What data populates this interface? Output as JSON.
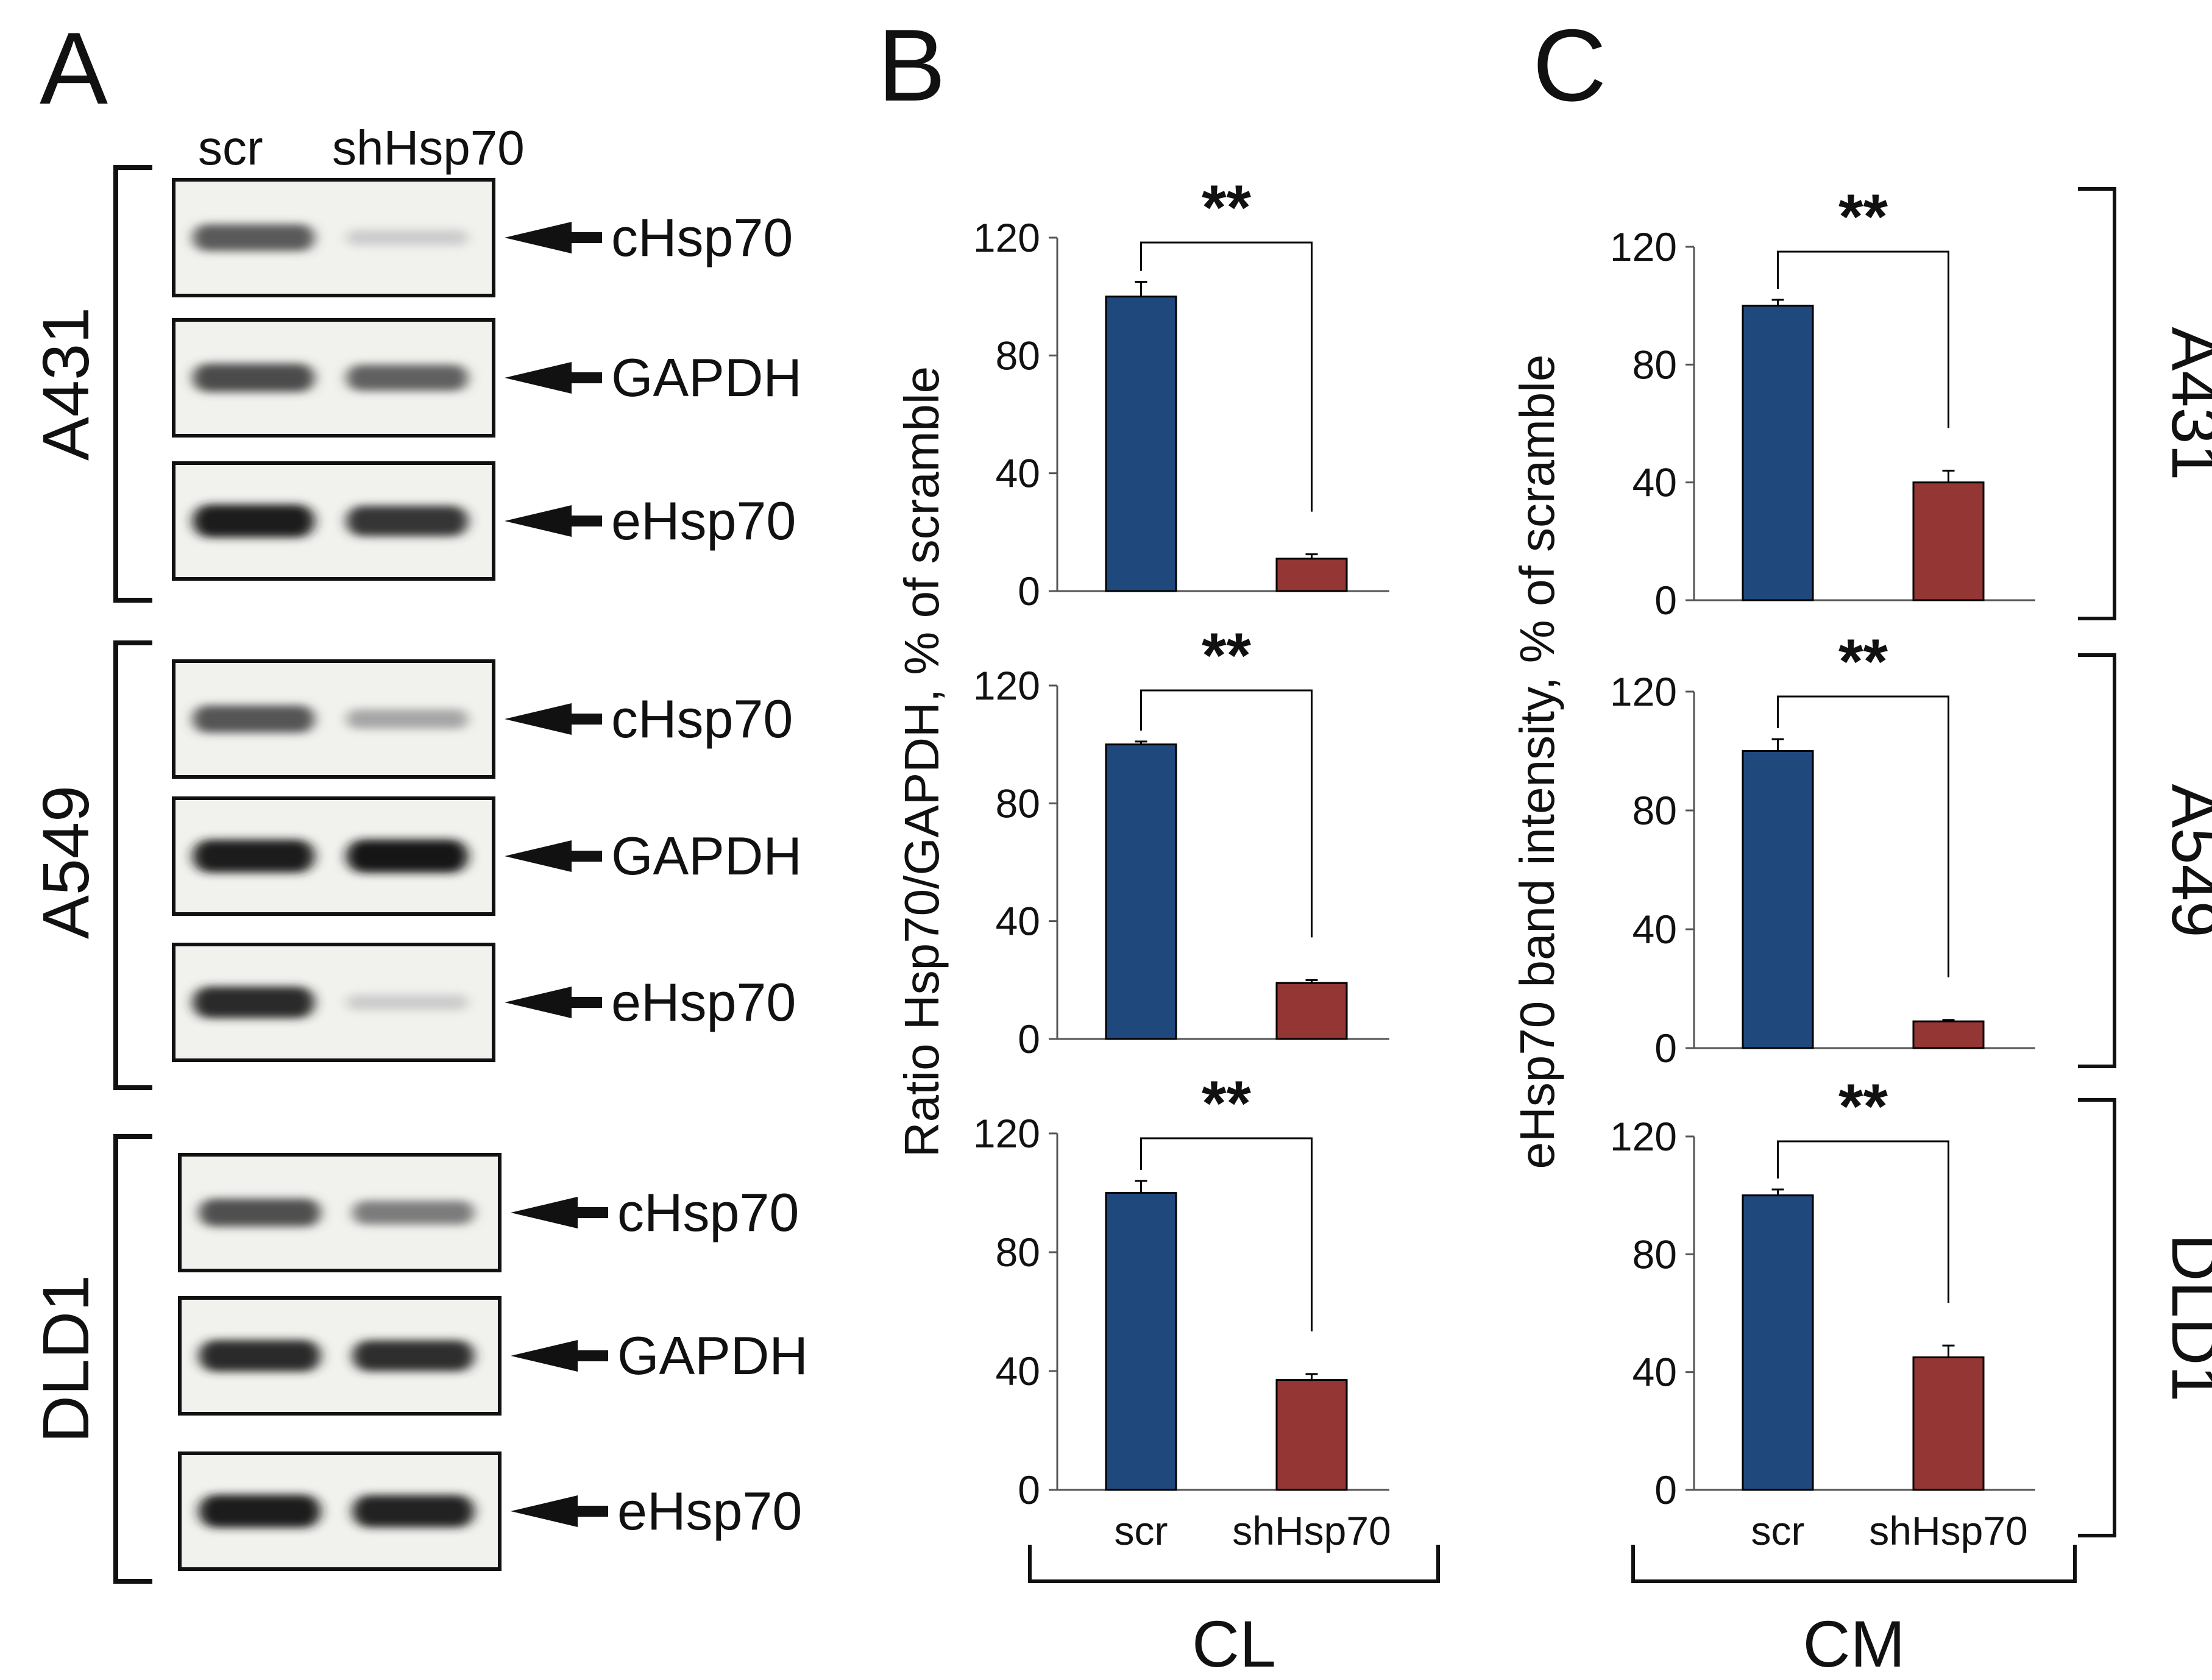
{
  "figure": {
    "panel_labels": [
      "A",
      "B",
      "C"
    ],
    "western_blot": {
      "lanes": [
        "scr",
        "shHsp70"
      ],
      "cell_lines": [
        {
          "name": "A431",
          "blots": [
            {
              "label": "cHsp70",
              "intensity": [
                0.65,
                0.12
              ]
            },
            {
              "label": "GAPDH",
              "intensity": [
                0.72,
                0.62
              ]
            },
            {
              "label": "eHsp70",
              "intensity": [
                0.95,
                0.82
              ]
            }
          ]
        },
        {
          "name": "A549",
          "blots": [
            {
              "label": "cHsp70",
              "intensity": [
                0.68,
                0.3
              ]
            },
            {
              "label": "GAPDH",
              "intensity": [
                0.95,
                0.96
              ]
            },
            {
              "label": "eHsp70",
              "intensity": [
                0.88,
                0.12
              ]
            }
          ]
        },
        {
          "name": "DLD1",
          "blots": [
            {
              "label": "cHsp70",
              "intensity": [
                0.7,
                0.5
              ]
            },
            {
              "label": "GAPDH",
              "intensity": [
                0.88,
                0.85
              ]
            },
            {
              "label": "eHsp70",
              "intensity": [
                0.95,
                0.92
              ]
            }
          ]
        }
      ]
    },
    "group_labels": {
      "B": "CL",
      "C": "CM"
    }
  },
  "colors": {
    "scr": "#1f497d",
    "shHsp70": "#943634",
    "ink": "#111111"
  },
  "chart_data": [
    {
      "type": "bar",
      "panel": "B",
      "cell_line": "A431",
      "categories": [
        "scr",
        "shHsp70"
      ],
      "values": [
        100,
        11
      ],
      "errors": [
        5,
        1.5
      ],
      "ylim": [
        0,
        120
      ],
      "yticks": [
        0,
        40,
        80,
        120
      ],
      "significance": "**",
      "ylabel": "Ratio Hsp70/GAPDH,  % of scramble",
      "xlabel": "CL"
    },
    {
      "type": "bar",
      "panel": "B",
      "cell_line": "A549",
      "categories": [
        "scr",
        "shHsp70"
      ],
      "values": [
        100,
        19
      ],
      "errors": [
        1,
        1
      ],
      "ylim": [
        0,
        120
      ],
      "yticks": [
        0,
        40,
        80,
        120
      ],
      "significance": "**",
      "ylabel": "Ratio Hsp70/GAPDH,  % of scramble",
      "xlabel": "CL"
    },
    {
      "type": "bar",
      "panel": "B",
      "cell_line": "DLD1",
      "categories": [
        "scr",
        "shHsp70"
      ],
      "values": [
        100,
        37
      ],
      "errors": [
        4,
        2
      ],
      "ylim": [
        0,
        120
      ],
      "yticks": [
        0,
        40,
        80,
        120
      ],
      "significance": "**",
      "ylabel": "Ratio Hsp70/GAPDH,  % of scramble",
      "xlabel": "CL"
    },
    {
      "type": "bar",
      "panel": "C",
      "cell_line": "A431",
      "categories": [
        "scr",
        "shHsp70"
      ],
      "values": [
        100,
        40
      ],
      "errors": [
        2,
        4
      ],
      "ylim": [
        0,
        120
      ],
      "yticks": [
        0,
        40,
        80,
        120
      ],
      "significance": "**",
      "ylabel": "eHsp70 band intensity, % of scramble",
      "xlabel": "CM"
    },
    {
      "type": "bar",
      "panel": "C",
      "cell_line": "A549",
      "categories": [
        "scr",
        "shHsp70"
      ],
      "values": [
        100,
        9
      ],
      "errors": [
        4,
        0.5
      ],
      "ylim": [
        0,
        120
      ],
      "yticks": [
        0,
        40,
        80,
        120
      ],
      "significance": "**",
      "ylabel": "eHsp70 band intensity, % of scramble",
      "xlabel": "CM"
    },
    {
      "type": "bar",
      "panel": "C",
      "cell_line": "DLD1",
      "categories": [
        "scr",
        "shHsp70"
      ],
      "values": [
        100,
        45
      ],
      "errors": [
        2,
        4
      ],
      "ylim": [
        0,
        120
      ],
      "yticks": [
        0,
        40,
        80,
        120
      ],
      "significance": "**",
      "ylabel": "eHsp70 band intensity, % of scramble",
      "xlabel": "CM"
    }
  ]
}
